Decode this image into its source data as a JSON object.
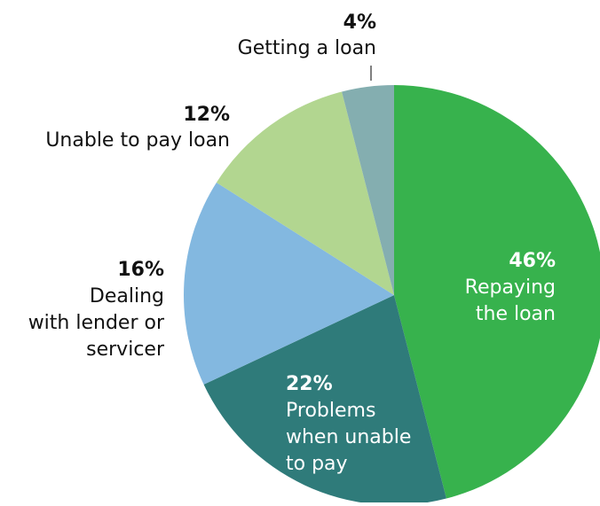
{
  "chart_data": {
    "type": "pie",
    "start_angle_deg": 0,
    "direction": "clockwise",
    "slices": [
      {
        "label_lines": [
          "Repaying",
          "the loan"
        ],
        "percent_label": "46%",
        "value": 46,
        "color": "#37b24d"
      },
      {
        "label_lines": [
          "Problems",
          "when unable",
          "to pay"
        ],
        "percent_label": "22%",
        "value": 22,
        "color": "#2f7b7a"
      },
      {
        "label_lines": [
          "Dealing",
          "with lender or",
          "servicer"
        ],
        "percent_label": "16%",
        "value": 16,
        "color": "#83b8e0"
      },
      {
        "label_lines": [
          "Unable to pay loan"
        ],
        "percent_label": "12%",
        "value": 12,
        "color": "#b2d690"
      },
      {
        "label_lines": [
          "Getting a loan"
        ],
        "percent_label": "4%",
        "value": 4,
        "color": "#84aeb0"
      }
    ]
  }
}
